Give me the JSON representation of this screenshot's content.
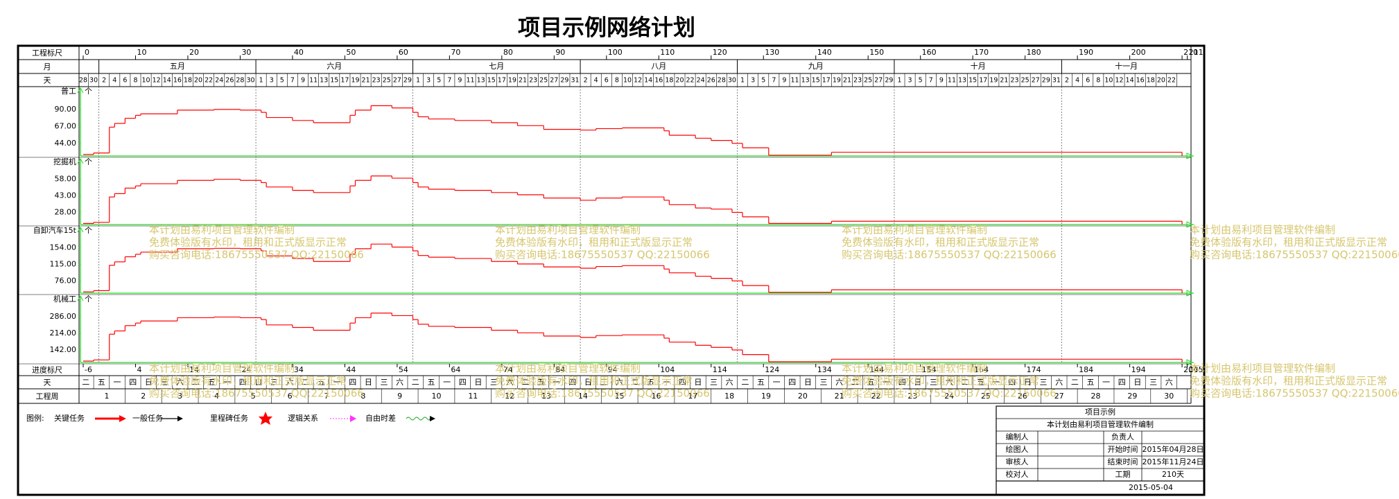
{
  "title": "项目示例网络计划",
  "chart_data": {
    "type": "step",
    "scale": {
      "label": "工程标尺",
      "xlim": [
        0,
        210
      ],
      "ticks": [
        0,
        10,
        20,
        30,
        40,
        50,
        60,
        70,
        80,
        90,
        100,
        110,
        120,
        130,
        140,
        150,
        160,
        170,
        180,
        190,
        200,
        210,
        211
      ]
    },
    "months": {
      "label": "月",
      "categories": [
        null,
        "五月",
        "六月",
        "七月",
        "八月",
        "九月",
        "十月",
        "十一月"
      ]
    },
    "days": {
      "label": "天",
      "values": [
        28,
        30,
        2,
        4,
        6,
        8,
        10,
        12,
        14,
        16,
        18,
        20,
        22,
        24,
        26,
        28,
        30,
        1,
        3,
        5,
        7,
        9,
        11,
        13,
        15,
        17,
        19,
        21,
        23,
        25,
        27,
        29,
        1,
        3,
        5,
        7,
        9,
        11,
        13,
        15,
        17,
        19,
        21,
        23,
        25,
        27,
        29,
        31,
        2,
        4,
        6,
        8,
        10,
        12,
        14,
        16,
        18,
        20,
        22,
        24,
        26,
        28,
        30,
        1,
        3,
        5,
        7,
        9,
        11,
        13,
        15,
        17,
        19,
        21,
        23,
        25,
        27,
        29,
        1,
        3,
        5,
        7,
        9,
        11,
        13,
        15,
        17,
        19,
        21,
        23,
        25,
        27,
        29,
        31,
        2,
        4,
        6,
        8,
        10,
        12,
        14,
        16,
        18,
        20,
        22
      ]
    },
    "x": [
      0,
      2,
      5,
      6,
      8,
      10,
      11,
      18,
      25,
      30,
      34,
      35,
      40,
      44,
      51,
      52,
      55,
      59,
      63,
      64,
      66,
      71,
      78,
      83,
      88,
      95,
      98,
      103,
      111,
      112,
      117,
      120,
      124,
      126,
      131,
      143,
      210
    ],
    "panels": [
      {
        "name": "普工",
        "unit": "个",
        "color": "#ff0000",
        "ylim": [
          27,
          118
        ],
        "yticks": [
          {
            "value": 44,
            "label": "44.00"
          },
          {
            "value": 67,
            "label": "67.00"
          },
          {
            "value": 90,
            "label": "90.00"
          }
        ],
        "values": [
          29,
          31,
          66,
          71,
          78,
          82,
          84,
          89,
          90,
          89,
          86,
          79,
          75,
          72,
          82,
          89,
          95,
          92,
          86,
          80,
          77,
          75,
          72,
          68,
          63,
          62,
          64,
          65,
          61,
          55,
          51,
          48,
          44,
          38,
          28,
          32,
          27
        ]
      },
      {
        "name": "挖掘机",
        "unit": "个",
        "color": "#ff0000",
        "ylim": [
          17,
          76
        ],
        "yticks": [
          {
            "value": 28,
            "label": "28.00"
          },
          {
            "value": 43,
            "label": "43.00"
          },
          {
            "value": 58,
            "label": "58.00"
          }
        ],
        "values": [
          18,
          19,
          42,
          45,
          50,
          52,
          54,
          57,
          58,
          57,
          55,
          51,
          48,
          46,
          52,
          57,
          61,
          59,
          55,
          51,
          49,
          48,
          46,
          44,
          41,
          39,
          41,
          42,
          39,
          35,
          32,
          31,
          28,
          24,
          18,
          20,
          17
        ]
      },
      {
        "name": "自卸汽车15t",
        "unit": "个",
        "color": "#ff0000",
        "ylim": [
          47,
          201
        ],
        "yticks": [
          {
            "value": 76,
            "label": "76.00"
          },
          {
            "value": 115,
            "label": "115.00"
          },
          {
            "value": 154,
            "label": "154.00"
          }
        ],
        "values": [
          50,
          53,
          113,
          121,
          133,
          139,
          144,
          152,
          153,
          152,
          147,
          135,
          129,
          122,
          139,
          152,
          163,
          156,
          147,
          136,
          132,
          129,
          122,
          116,
          109,
          106,
          110,
          112,
          104,
          95,
          87,
          82,
          76,
          65,
          49,
          55,
          47
        ]
      },
      {
        "name": "机械工",
        "unit": "个",
        "color": "#ff0000",
        "ylim": [
          88,
          372
        ],
        "yticks": [
          {
            "value": 142,
            "label": "142.00"
          },
          {
            "value": 214,
            "label": "214.00"
          },
          {
            "value": 286,
            "label": "286.00"
          }
        ],
        "values": [
          94,
          99,
          210,
          224,
          247,
          258,
          267,
          281,
          284,
          281,
          273,
          250,
          239,
          227,
          258,
          281,
          301,
          290,
          273,
          253,
          244,
          239,
          227,
          216,
          202,
          196,
          204,
          207,
          193,
          176,
          162,
          153,
          142,
          122,
          91,
          102,
          88
        ]
      }
    ],
    "progress": {
      "label": "进度标尺",
      "xlim": [
        -6,
        204
      ],
      "ticks": [
        -6,
        4,
        14,
        24,
        34,
        44,
        54,
        64,
        74,
        84,
        94,
        104,
        114,
        124,
        134,
        144,
        154,
        164,
        174,
        184,
        194,
        204,
        205
      ]
    },
    "weekdays": {
      "label": "天",
      "values": [
        "二",
        "五",
        "一",
        "四",
        "日",
        "三",
        "六",
        "二",
        "五",
        "一",
        "四",
        "日",
        "三",
        "六",
        "二",
        "五",
        "一",
        "四",
        "日",
        "三",
        "六",
        "二",
        "五",
        "一",
        "四",
        "日",
        "三",
        "六",
        "二",
        "五",
        "一",
        "四",
        "日",
        "三",
        "六",
        "二",
        "五",
        "一",
        "四",
        "日",
        "三",
        "六",
        "二",
        "五",
        "一",
        "四",
        "日",
        "三",
        "六",
        "二",
        "五",
        "一",
        "四",
        "日",
        "三",
        "六",
        "二",
        "五",
        "一",
        "四",
        "日",
        "三",
        "六",
        "二",
        "五",
        "一",
        "四",
        "日",
        "三",
        "六"
      ]
    },
    "weeks": {
      "label": "工程周",
      "values": [
        1,
        2,
        3,
        4,
        5,
        6,
        7,
        8,
        9,
        10,
        11,
        12,
        13,
        14,
        15,
        16,
        17,
        18,
        19,
        20,
        21,
        22,
        23,
        24,
        25,
        26,
        27,
        28,
        29,
        30
      ]
    }
  },
  "watermark": [
    "本计划由易利项目管理软件编制",
    "免费体验版有水印，租用和正式版显示正常",
    "购买咨询电话:18675550537 QQ:22150066"
  ],
  "legend": {
    "title": "图例:",
    "items": [
      "关键任务",
      "一般任务",
      "里程碑任务",
      "逻辑关系",
      "自由时差"
    ]
  },
  "info": {
    "title": "项目示例",
    "subtitle": "本计划由易利项目管理软件编制",
    "rows": [
      {
        "left": "编制人",
        "right": "负责人"
      },
      {
        "left": "绘图人",
        "right": "开始时间",
        "value": "2015年04月28日"
      },
      {
        "left": "审核人",
        "right": "结束时间",
        "value": "2015年11月24日"
      },
      {
        "left": "校对人",
        "right": "工期",
        "value": "210天"
      }
    ],
    "date": "2015-05-04"
  }
}
